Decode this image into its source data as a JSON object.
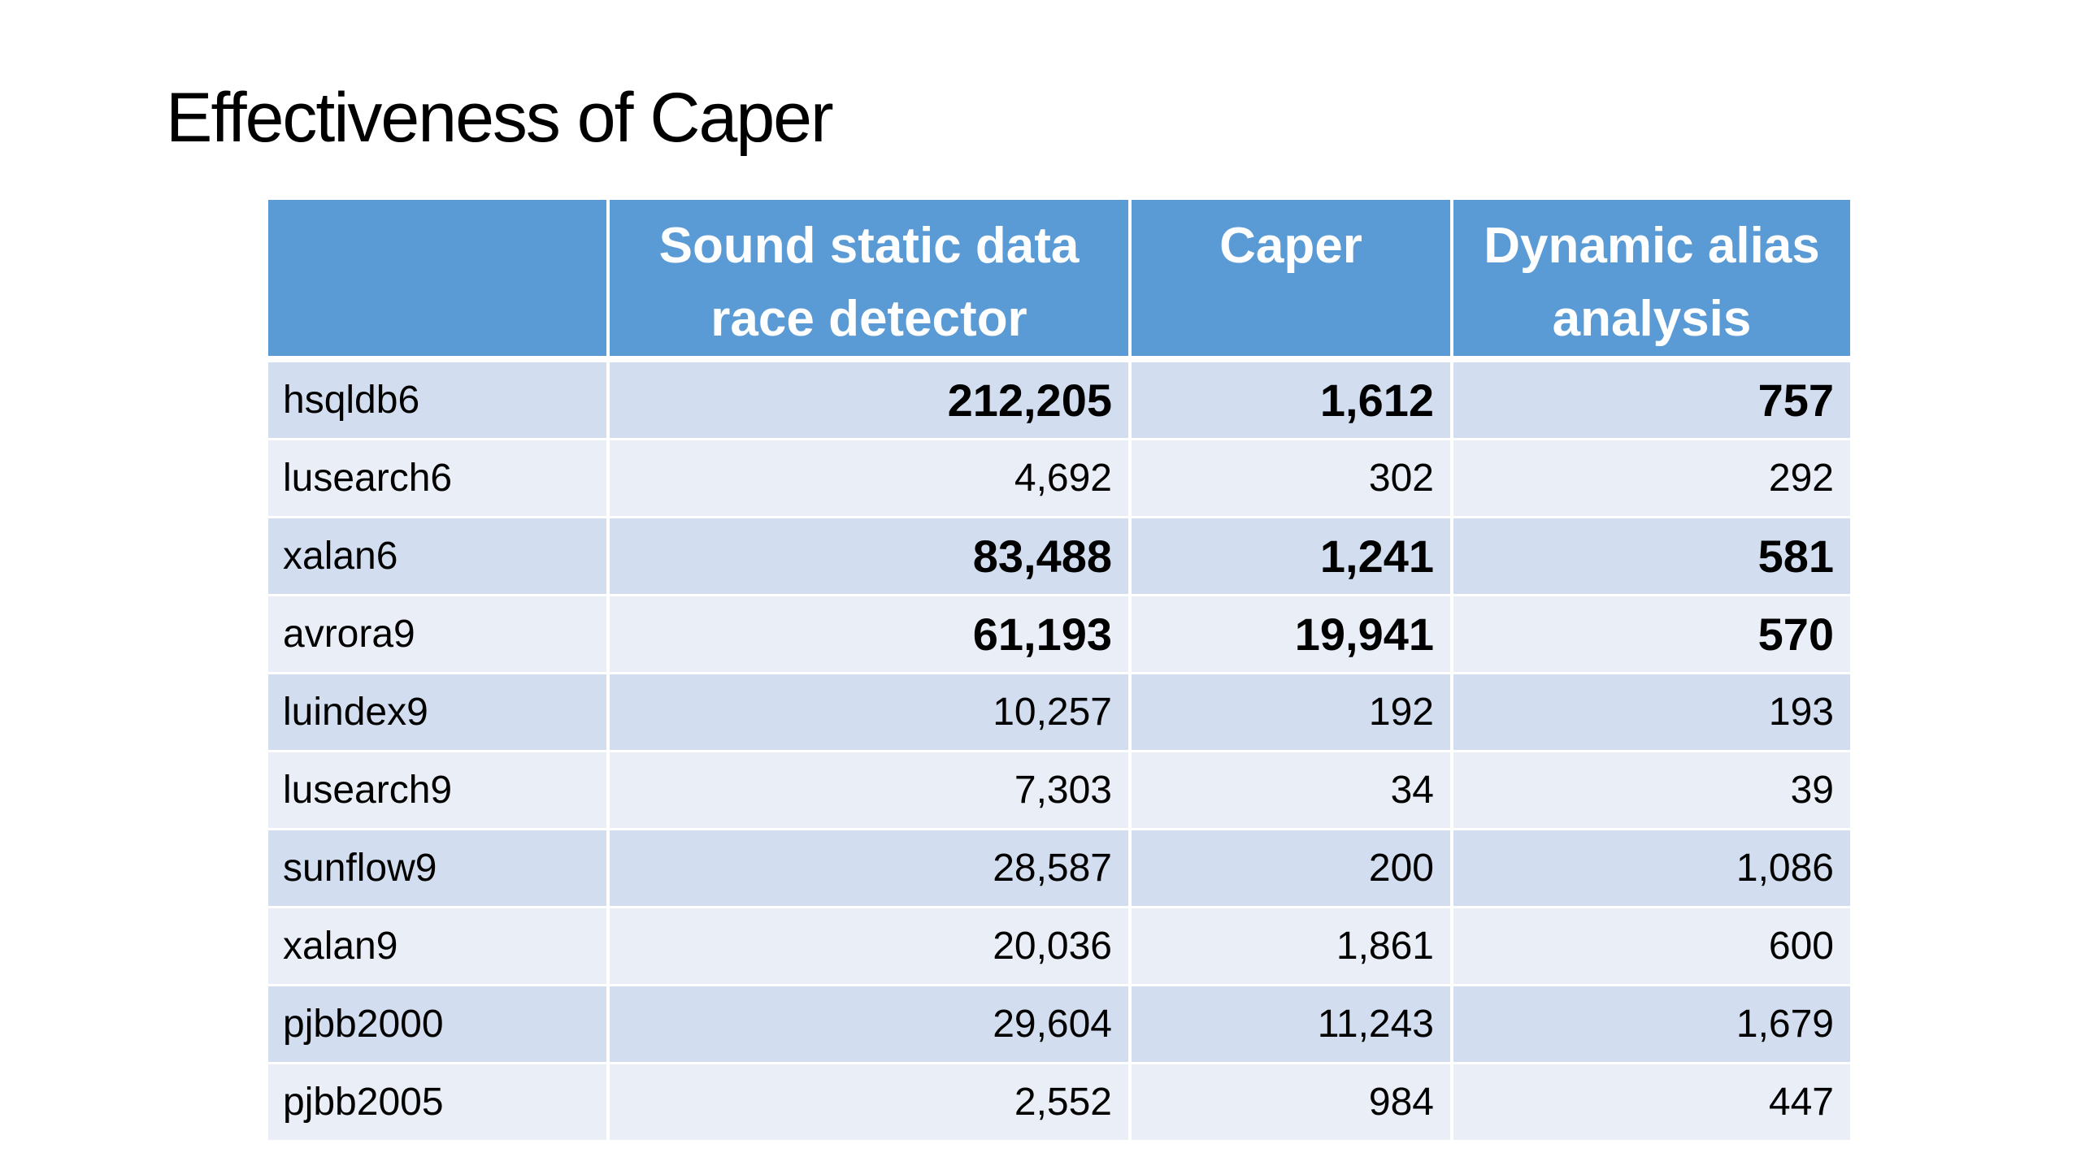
{
  "title": "Effectiveness of Caper",
  "colors": {
    "header_bg": "#5b9bd5",
    "row_odd_bg": "#d2deef",
    "row_even_bg": "#eaeff7"
  },
  "table": {
    "headers": [
      "",
      "Sound static data race detector",
      "Caper",
      "Dynamic alias analysis"
    ],
    "rows": [
      {
        "benchmark": "hsqldb6",
        "sound": "212,205",
        "caper": "1,612",
        "dynamic": "757",
        "bold": true
      },
      {
        "benchmark": "lusearch6",
        "sound": "4,692",
        "caper": "302",
        "dynamic": "292",
        "bold": false
      },
      {
        "benchmark": "xalan6",
        "sound": "83,488",
        "caper": "1,241",
        "dynamic": "581",
        "bold": true
      },
      {
        "benchmark": "avrora9",
        "sound": "61,193",
        "caper": "19,941",
        "dynamic": "570",
        "bold": true
      },
      {
        "benchmark": "luindex9",
        "sound": "10,257",
        "caper": "192",
        "dynamic": "193",
        "bold": false
      },
      {
        "benchmark": "lusearch9",
        "sound": "7,303",
        "caper": "34",
        "dynamic": "39",
        "bold": false
      },
      {
        "benchmark": "sunflow9",
        "sound": "28,587",
        "caper": "200",
        "dynamic": "1,086",
        "bold": false
      },
      {
        "benchmark": "xalan9",
        "sound": "20,036",
        "caper": "1,861",
        "dynamic": "600",
        "bold": false
      },
      {
        "benchmark": "pjbb2000",
        "sound": "29,604",
        "caper": "11,243",
        "dynamic": "1,679",
        "bold": false
      },
      {
        "benchmark": "pjbb2005",
        "sound": "2,552",
        "caper": "984",
        "dynamic": "447",
        "bold": false
      }
    ]
  }
}
